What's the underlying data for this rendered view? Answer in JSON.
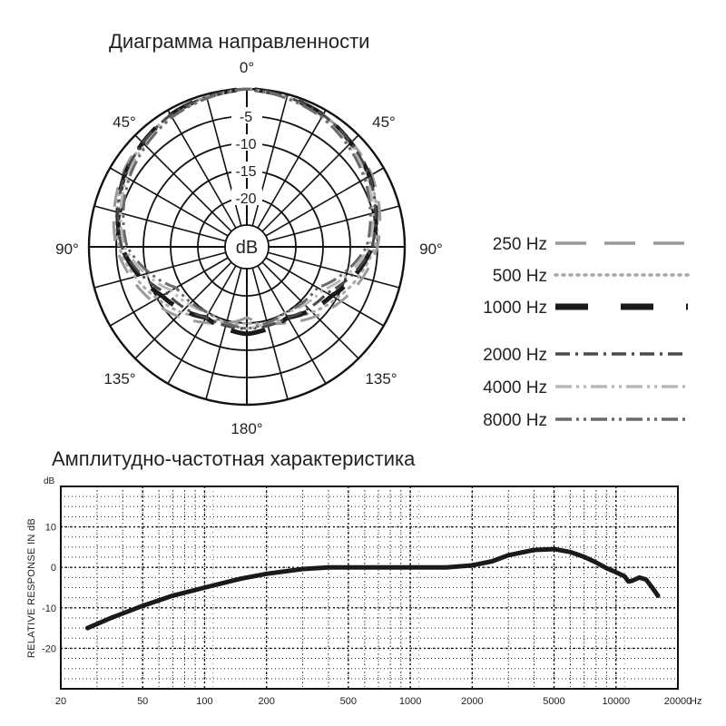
{
  "polar": {
    "title": "Диаграмма направленности",
    "angle_labels": {
      "top": "0°",
      "upper_left": "45°",
      "upper_right": "45°",
      "left": "90°",
      "right": "90°",
      "lower_left": "135°",
      "lower_right": "135°",
      "bottom": "180°"
    },
    "ring_labels": [
      "-5",
      "-10",
      "-15",
      "-20"
    ],
    "center_label": "dB"
  },
  "legend": [
    {
      "label": "250 Hz",
      "color": "#9a9a9a",
      "style": "long-dash"
    },
    {
      "label": "500 Hz",
      "color": "#a8a8a8",
      "style": "dotted"
    },
    {
      "label": "1000 Hz",
      "color": "#1a1a1a",
      "style": "long-dash-bold"
    },
    {
      "label": "2000 Hz",
      "color": "#4a4a4a",
      "style": "dash-dot"
    },
    {
      "label": "4000 Hz",
      "color": "#b8b8b8",
      "style": "dash-dot-dot"
    },
    {
      "label": "8000 Hz",
      "color": "#6a6a6a",
      "style": "dash-dot-dot"
    }
  ],
  "chart_data": [
    {
      "type": "polar",
      "title": "Диаграмма направленности",
      "angle_unit": "degrees",
      "radial_unit": "dB",
      "radial_ticks": [
        -5,
        -10,
        -15,
        -20
      ],
      "radial_range": [
        -25,
        0
      ],
      "angle_ticks": [
        0,
        45,
        90,
        135,
        180
      ],
      "pattern": "cardioid",
      "series": [
        {
          "name": "250 Hz",
          "angles": [
            0,
            30,
            60,
            90,
            120,
            150,
            180
          ],
          "values": [
            0,
            -1,
            -2.5,
            -5,
            -9,
            -13,
            -16
          ]
        },
        {
          "name": "500 Hz",
          "angles": [
            0,
            30,
            60,
            90,
            120,
            150,
            180
          ],
          "values": [
            0,
            -1,
            -3,
            -5.5,
            -10,
            -14,
            -15
          ]
        },
        {
          "name": "1000 Hz",
          "angles": [
            0,
            30,
            60,
            90,
            120,
            150,
            180
          ],
          "values": [
            0,
            -1,
            -3,
            -6,
            -11,
            -14,
            -13
          ]
        },
        {
          "name": "2000 Hz",
          "angles": [
            0,
            30,
            60,
            90,
            120,
            150,
            180
          ],
          "values": [
            0,
            -1,
            -3,
            -6,
            -12,
            -14,
            -14
          ]
        },
        {
          "name": "4000 Hz",
          "angles": [
            0,
            30,
            60,
            90,
            120,
            150,
            180
          ],
          "values": [
            0,
            -1.5,
            -3.5,
            -6.5,
            -13,
            -15,
            -14
          ]
        },
        {
          "name": "8000 Hz",
          "angles": [
            0,
            30,
            60,
            90,
            120,
            150,
            180
          ],
          "values": [
            0,
            -1.5,
            -4,
            -7,
            -14,
            -15,
            -14
          ]
        }
      ]
    },
    {
      "type": "line",
      "title": "Амплитудно-частотная характеристика",
      "xlabel": "Hz",
      "ylabel": "RELATIVE RESPONSE IN dB",
      "yunit": "dB",
      "xscale": "log",
      "xlim": [
        20,
        20000
      ],
      "ylim": [
        -30,
        20
      ],
      "xticks": [
        20,
        50,
        100,
        200,
        500,
        1000,
        2000,
        5000,
        10000,
        20000
      ],
      "yticks": [
        10,
        0,
        -10,
        -20
      ],
      "grid": true,
      "series": [
        {
          "x": [
            27,
            35,
            50,
            70,
            100,
            150,
            200,
            300,
            400,
            500,
            700,
            1000,
            1500,
            2000,
            2500,
            3000,
            4000,
            5000,
            6000,
            7000,
            8000,
            9000,
            10000,
            11000,
            11500,
            12000,
            13000,
            14000,
            15000,
            16000
          ],
          "y": [
            -15,
            -12.5,
            -9.5,
            -7,
            -5,
            -2.8,
            -1.6,
            -0.4,
            0,
            0,
            0,
            0,
            0,
            0.5,
            1.5,
            3,
            4.3,
            4.5,
            3.8,
            2.6,
            1.2,
            -0.2,
            -1.2,
            -2.2,
            -3.5,
            -3.3,
            -2.5,
            -3,
            -5,
            -7
          ]
        }
      ]
    }
  ]
}
